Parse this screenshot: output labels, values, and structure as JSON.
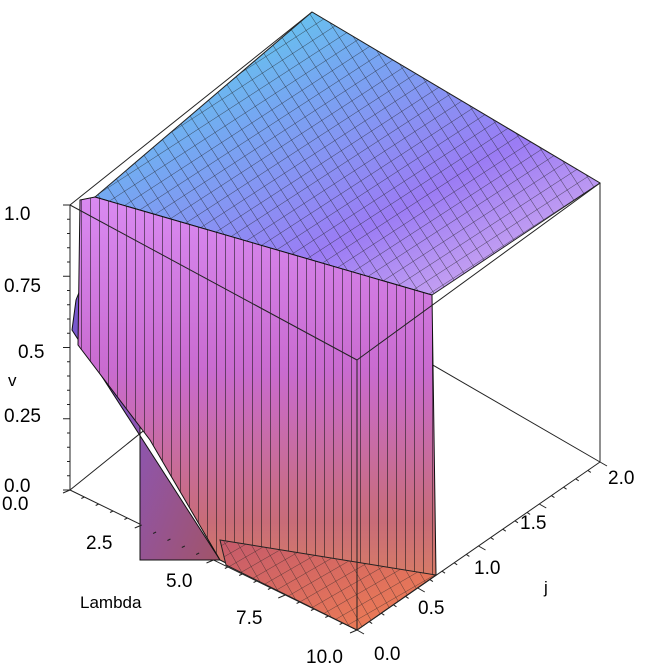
{
  "chart_data": {
    "type": "surface3d",
    "axes": {
      "x": {
        "label": "Lambda",
        "range": [
          0,
          10
        ],
        "ticks": [
          "0.0",
          "2.5",
          "5.0",
          "7.5",
          "10.0"
        ]
      },
      "y": {
        "label": "j",
        "range": [
          0,
          2
        ],
        "ticks": [
          "0.0",
          "0.5",
          "1.0",
          "1.5",
          "2.0"
        ]
      },
      "z": {
        "label": "v",
        "range": [
          0,
          1
        ],
        "ticks": [
          "0.0",
          "0.25",
          "0.5",
          "0.75",
          "1.0"
        ]
      }
    },
    "surface": {
      "description_points": {
        "plateau_value": 1.0,
        "front_edge_lambda_vs_v_at_j0": [
          {
            "x": 0.0,
            "v": 1.0
          },
          {
            "x": 0.0,
            "v": 0.52
          },
          {
            "x": 4.0,
            "v": 0.12
          },
          {
            "x": 6.5,
            "v": 0.05
          },
          {
            "x": 10.0,
            "v": 0.0
          }
        ],
        "step_location_j": 1.0
      },
      "colormap": [
        "#4fe3e6",
        "#7a6cf2",
        "#e070e8",
        "#f08a5a"
      ]
    },
    "box": true
  }
}
